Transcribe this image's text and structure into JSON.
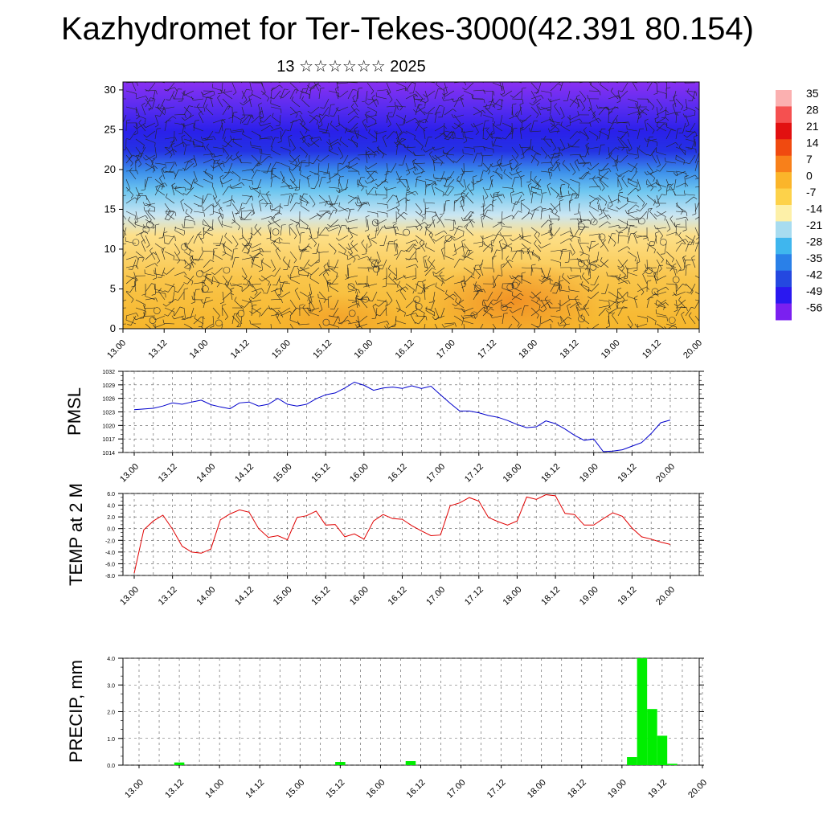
{
  "title": "Kazhydromet for Ter-Tekes-3000(42.391 80.154)",
  "subtitle": "13 ☆☆☆☆☆☆ 2025",
  "time_labels": [
    "13.00",
    "13.12",
    "14.00",
    "14.12",
    "15.00",
    "15.12",
    "16.00",
    "16.12",
    "17.00",
    "17.12",
    "18.00",
    "18.12",
    "19.00",
    "19.12",
    "20.00"
  ],
  "colorbar": {
    "labels": [
      "35",
      "28",
      "21",
      "14",
      "7",
      "0",
      "-7",
      "-14",
      "-21",
      "-28",
      "-35",
      "-42",
      "-49",
      "-56"
    ],
    "colors": [
      "#fbb0b0",
      "#f55050",
      "#e21010",
      "#f04a10",
      "#f8801a",
      "#fbb52a",
      "#fdd24a",
      "#fdf0a8",
      "#a8dcf0",
      "#3fb6ee",
      "#2a80e8",
      "#2448e0",
      "#2a18f0",
      "#7b20f0"
    ]
  },
  "chart_data": [
    {
      "type": "heatmap",
      "description_of": "temperature cross-section with wind barbs",
      "yticks": [
        0,
        5,
        10,
        15,
        20,
        25,
        30
      ],
      "ylim": [
        0,
        31
      ],
      "x": [
        "13.00",
        "13.12",
        "14.00",
        "14.12",
        "15.00",
        "15.12",
        "16.00",
        "16.12",
        "17.00",
        "17.12",
        "18.00",
        "18.12",
        "19.00",
        "19.12",
        "20.00"
      ]
    },
    {
      "type": "line",
      "ylabel": "PMSL",
      "ylim": [
        1014,
        1032
      ],
      "yticks": [
        "1014",
        "1017",
        "1020",
        "1023",
        "1026",
        "1029",
        "1032"
      ],
      "color": "#0000cc",
      "x_hours": [
        0,
        6,
        9,
        12,
        15,
        18,
        21,
        24,
        27,
        30,
        33,
        36,
        39,
        42,
        45,
        48,
        51,
        54,
        57,
        60,
        63,
        66,
        69,
        72,
        75,
        78,
        81,
        84,
        87,
        90,
        93,
        96,
        99,
        102,
        105,
        108,
        111,
        114,
        117,
        120,
        123,
        126,
        129,
        132,
        135,
        138,
        141,
        144,
        147,
        150,
        153,
        156,
        159,
        162,
        165,
        168
      ],
      "values": [
        1023.5,
        1023.8,
        1024.3,
        1025.0,
        1024.7,
        1025.2,
        1025.6,
        1024.6,
        1024.1,
        1023.7,
        1025.0,
        1025.2,
        1024.3,
        1024.7,
        1026.0,
        1024.7,
        1024.3,
        1024.7,
        1025.9,
        1026.8,
        1027.2,
        1028.3,
        1029.6,
        1028.9,
        1027.8,
        1028.3,
        1028.5,
        1028.2,
        1028.8,
        1028.2,
        1028.7,
        1026.8,
        1024.9,
        1023.2,
        1023.2,
        1022.8,
        1022.2,
        1021.8,
        1021.1,
        1020.2,
        1019.5,
        1019.7,
        1021.0,
        1020.4,
        1019.2,
        1017.8,
        1016.7,
        1017.0,
        1014.2,
        1014.3,
        1014.6,
        1015.4,
        1016.2,
        1018.2,
        1020.6,
        1021.2
      ]
    },
    {
      "type": "line",
      "ylabel": "TEMP at 2 M",
      "ylim": [
        -8,
        6
      ],
      "yticks": [
        "-8.0",
        "-6.0",
        "-4.0",
        "-2.0",
        "0.0",
        "2.0",
        "4.0",
        "6.0"
      ],
      "color": "#e00000",
      "x_hours": [
        0,
        3,
        6,
        9,
        12,
        15,
        18,
        21,
        24,
        27,
        30,
        33,
        36,
        39,
        42,
        45,
        48,
        51,
        54,
        57,
        60,
        63,
        66,
        69,
        72,
        75,
        78,
        81,
        84,
        87,
        90,
        93,
        96,
        99,
        102,
        105,
        108,
        111,
        114,
        117,
        120,
        123,
        126,
        129,
        132,
        135,
        138,
        141,
        144,
        147,
        150,
        153,
        156,
        159,
        162,
        165,
        168
      ],
      "values": [
        -7.6,
        -0.2,
        1.3,
        2.3,
        -0.1,
        -3.0,
        -4.0,
        -4.2,
        -3.5,
        1.5,
        2.5,
        3.2,
        2.8,
        0.0,
        -1.5,
        -1.2,
        -1.9,
        1.9,
        2.2,
        3.0,
        0.6,
        0.7,
        -1.4,
        -0.9,
        -1.8,
        1.3,
        2.4,
        1.7,
        1.6,
        0.5,
        -0.4,
        -1.2,
        -1.1,
        3.9,
        4.4,
        5.3,
        4.7,
        1.9,
        1.2,
        0.6,
        1.3,
        5.4,
        5.0,
        5.8,
        5.6,
        2.6,
        2.4,
        0.6,
        0.6,
        1.7,
        2.7,
        2.1,
        0.1,
        -1.4,
        -1.8,
        -2.3,
        -2.7
      ]
    },
    {
      "type": "bar",
      "ylabel": "PRECIP, mm",
      "ylim": [
        0,
        4
      ],
      "yticks": [
        "0.0",
        "1.0",
        "2.0",
        "3.0",
        "4.0"
      ],
      "color": "#00ee00",
      "x_hours": [
        12,
        60,
        81,
        147,
        150,
        153,
        156,
        159
      ],
      "values": [
        0.1,
        0.12,
        0.15,
        0.3,
        4.0,
        2.1,
        1.1,
        0.05
      ]
    }
  ]
}
